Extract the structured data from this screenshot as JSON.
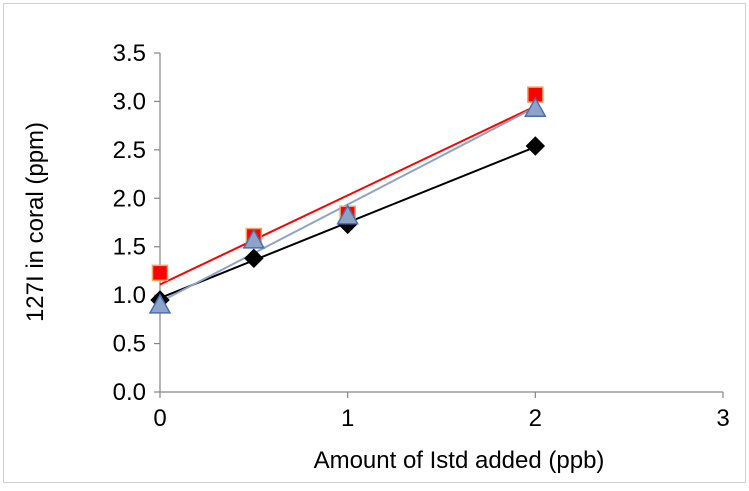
{
  "chart_data": {
    "type": "scatter",
    "title": "",
    "xlabel": "Amount of Istd added (ppb)",
    "ylabel": "127I in coral (ppm)",
    "xlim": [
      0,
      3
    ],
    "ylim": [
      0,
      3.5
    ],
    "x_ticks": [
      "0",
      "1",
      "2",
      "3"
    ],
    "y_ticks": [
      "0.0",
      "0.5",
      "1.0",
      "1.5",
      "2.0",
      "2.5",
      "3.0",
      "3.5"
    ],
    "grid": false,
    "legend": "none",
    "series": [
      {
        "marker": "diamond",
        "color": "#000000",
        "marker_color": "#000000",
        "x": [
          0,
          0.5,
          1,
          2
        ],
        "y": [
          0.95,
          1.38,
          1.73,
          2.54
        ],
        "trendline": {
          "x": [
            0,
            2
          ],
          "y": [
            0.97,
            2.53
          ],
          "color": "#000000"
        }
      },
      {
        "marker": "square",
        "color": "#ff0000",
        "marker_color": "#ff0000",
        "marker_edge": "#f4a460",
        "x": [
          0,
          0.5,
          1,
          2
        ],
        "y": [
          1.23,
          1.61,
          1.84,
          3.07
        ],
        "trendline": {
          "x": [
            0,
            2
          ],
          "y": [
            1.11,
            2.95
          ],
          "color": "#ff0000"
        }
      },
      {
        "marker": "triangle",
        "color": "#8ea3c8",
        "marker_color": "#8ea3c8",
        "marker_edge": "#4a6fb2",
        "x": [
          0,
          0.5,
          1,
          2
        ],
        "y": [
          0.9,
          1.57,
          1.82,
          2.93
        ],
        "trendline": {
          "x": [
            0,
            2
          ],
          "y": [
            0.93,
            2.94
          ],
          "color": "#8ea3c8"
        }
      }
    ]
  }
}
